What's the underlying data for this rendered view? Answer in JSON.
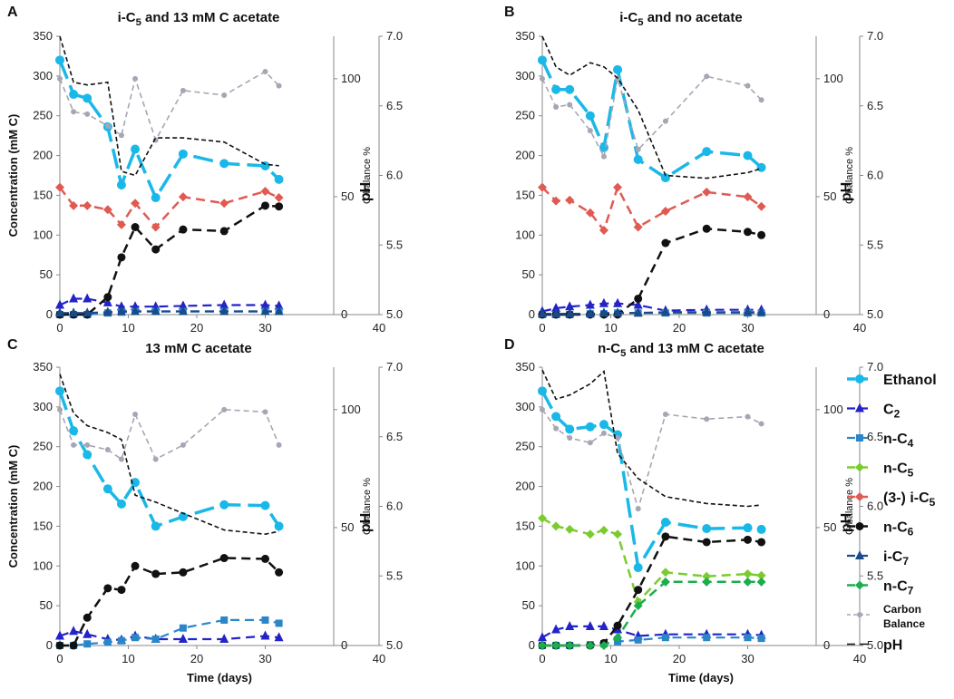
{
  "colors": {
    "Ethanol": "#1ab8e8",
    "C2": "#2323c8",
    "nC4": "#2a86c8",
    "nC5": "#7acc2e",
    "iC5": "#e05a52",
    "nC6": "#111111",
    "iC7": "#1a4a8a",
    "nC7": "#1cad4f",
    "Carbon": "#a6a6b4",
    "pH": "#111111"
  },
  "axes": {
    "x_label": "Time (days)",
    "y_label": "Concentration (mM C)",
    "cbal_label": "C-balance %",
    "ph_label": "pH",
    "x_ticks": [
      "0",
      "10",
      "20",
      "30",
      "40"
    ],
    "y_ticks": [
      "0",
      "50",
      "100",
      "150",
      "200",
      "250",
      "300",
      "350"
    ],
    "cbal_ticks": [
      "0",
      "50",
      "100"
    ],
    "ph_ticks": [
      "5.0",
      "5.5",
      "6.0",
      "6.5",
      "7.0"
    ]
  },
  "legend": [
    {
      "key": "Ethanol",
      "label": "Ethanol"
    },
    {
      "key": "C2",
      "label": "C₂"
    },
    {
      "key": "nC4",
      "label": "n-C₄"
    },
    {
      "key": "nC5",
      "label": "n-C₅"
    },
    {
      "key": "iC5",
      "label": "(3-) i-C₅"
    },
    {
      "key": "nC6",
      "label": "n-C₆"
    },
    {
      "key": "iC7",
      "label": "i-C₇"
    },
    {
      "key": "nC7",
      "label": "n-C₇"
    },
    {
      "key": "Carbon",
      "label": "Carbon Balance"
    },
    {
      "key": "pH",
      "label": "pH"
    }
  ],
  "chart_data": [
    {
      "panel": "A",
      "type": "line",
      "title": "i-C₅ and 13 mM C acetate",
      "xlabel": "Time (days)",
      "ylabel": "Concentration (mM C)",
      "xlim": [
        0,
        40
      ],
      "ylim": [
        0,
        350
      ],
      "cbal_lim": [
        0,
        118
      ],
      "ph_lim": [
        5.0,
        7.0
      ],
      "series": [
        {
          "key": "Ethanol",
          "axis": "conc",
          "x": [
            0,
            2,
            4,
            7,
            9,
            11,
            14,
            18,
            24,
            30,
            32
          ],
          "y": [
            320,
            277,
            272,
            236,
            163,
            208,
            147,
            202,
            190,
            187,
            170
          ]
        },
        {
          "key": "C2",
          "axis": "conc",
          "x": [
            0,
            2,
            4,
            7,
            9,
            11,
            14,
            18,
            24,
            30,
            32
          ],
          "y": [
            12,
            20,
            20,
            15,
            10,
            10,
            10,
            11,
            12,
            12,
            11
          ]
        },
        {
          "key": "nC4",
          "axis": "conc",
          "x": [
            0,
            2,
            4,
            7,
            9,
            11,
            14,
            18,
            24,
            30,
            32
          ],
          "y": [
            0,
            0,
            0,
            2,
            3,
            4,
            4,
            4,
            4,
            4,
            4
          ]
        },
        {
          "key": "iC5",
          "axis": "conc",
          "x": [
            0,
            2,
            4,
            7,
            9,
            11,
            14,
            18,
            24,
            30,
            32
          ],
          "y": [
            160,
            137,
            137,
            132,
            113,
            140,
            110,
            148,
            140,
            155,
            147
          ]
        },
        {
          "key": "nC6",
          "axis": "conc",
          "x": [
            0,
            2,
            4,
            7,
            9,
            11,
            14,
            18,
            24,
            30,
            32
          ],
          "y": [
            0,
            0,
            0,
            22,
            72,
            110,
            82,
            107,
            105,
            137,
            136
          ]
        },
        {
          "key": "iC7",
          "axis": "conc",
          "x": [
            0,
            2,
            4,
            7,
            9,
            11,
            14,
            18,
            24,
            30,
            32
          ],
          "y": [
            2,
            2,
            2,
            3,
            4,
            4,
            4,
            4,
            4,
            4,
            4
          ]
        },
        {
          "key": "Carbon",
          "axis": "cbal",
          "x": [
            0,
            2,
            4,
            7,
            9,
            11,
            14,
            18,
            24,
            30,
            32
          ],
          "y": [
            100,
            86,
            85,
            80,
            76,
            100,
            74,
            95,
            93,
            103,
            97
          ]
        },
        {
          "key": "pH",
          "axis": "ph",
          "x": [
            0,
            2,
            4,
            7,
            9,
            11,
            14,
            18,
            24,
            30,
            32
          ],
          "y": [
            7.0,
            6.67,
            6.65,
            6.67,
            6.03,
            6.0,
            6.27,
            6.27,
            6.24,
            6.08,
            6.07
          ]
        }
      ]
    },
    {
      "panel": "B",
      "type": "line",
      "title": "i-C₅ and no acetate",
      "xlabel": "Time (days)",
      "ylabel": "Concentration (mM C)",
      "xlim": [
        0,
        40
      ],
      "ylim": [
        0,
        350
      ],
      "cbal_lim": [
        0,
        118
      ],
      "ph_lim": [
        5.0,
        7.0
      ],
      "series": [
        {
          "key": "Ethanol",
          "axis": "conc",
          "x": [
            0,
            2,
            4,
            7,
            9,
            11,
            14,
            18,
            24,
            30,
            32
          ],
          "y": [
            320,
            283,
            283,
            250,
            210,
            308,
            195,
            172,
            205,
            200,
            185
          ]
        },
        {
          "key": "C2",
          "axis": "conc",
          "x": [
            0,
            2,
            4,
            7,
            9,
            11,
            14,
            18,
            24,
            30,
            32
          ],
          "y": [
            4,
            8,
            10,
            12,
            14,
            14,
            12,
            5,
            6,
            6,
            6
          ]
        },
        {
          "key": "nC4",
          "axis": "conc",
          "x": [
            0,
            2,
            4,
            7,
            9,
            11,
            14,
            18,
            24,
            30,
            32
          ],
          "y": [
            0,
            0,
            0,
            1,
            1,
            2,
            2,
            2,
            2,
            2,
            2
          ]
        },
        {
          "key": "iC5",
          "axis": "conc",
          "x": [
            0,
            2,
            4,
            7,
            9,
            11,
            14,
            18,
            24,
            30,
            32
          ],
          "y": [
            160,
            143,
            144,
            128,
            106,
            160,
            110,
            130,
            154,
            148,
            136
          ]
        },
        {
          "key": "nC6",
          "axis": "conc",
          "x": [
            0,
            2,
            4,
            7,
            9,
            11,
            14,
            18,
            24,
            30,
            32
          ],
          "y": [
            0,
            0,
            0,
            0,
            0,
            0,
            20,
            90,
            108,
            104,
            100
          ]
        },
        {
          "key": "iC7",
          "axis": "conc",
          "x": [
            0,
            2,
            4,
            7,
            9,
            11,
            14,
            18,
            24,
            30,
            32
          ],
          "y": [
            1,
            1,
            1,
            1,
            2,
            2,
            2,
            3,
            3,
            3,
            3
          ]
        },
        {
          "key": "Carbon",
          "axis": "cbal",
          "x": [
            0,
            2,
            4,
            7,
            9,
            11,
            14,
            18,
            24,
            30,
            32
          ],
          "y": [
            100,
            88,
            89,
            78,
            67,
            100,
            70,
            82,
            101,
            97,
            91
          ]
        },
        {
          "key": "pH",
          "axis": "ph",
          "x": [
            0,
            2,
            4,
            7,
            9,
            11,
            14,
            18,
            24,
            30,
            32
          ],
          "y": [
            7.0,
            6.78,
            6.72,
            6.81,
            6.78,
            6.7,
            6.47,
            6.0,
            5.98,
            6.02,
            6.05
          ]
        }
      ]
    },
    {
      "panel": "C",
      "type": "line",
      "title": "13 mM C acetate",
      "xlabel": "Time (days)",
      "ylabel": "Concentration (mM C)",
      "xlim": [
        0,
        40
      ],
      "ylim": [
        0,
        350
      ],
      "cbal_lim": [
        0,
        118
      ],
      "ph_lim": [
        5.0,
        7.0
      ],
      "series": [
        {
          "key": "Ethanol",
          "axis": "conc",
          "x": [
            0,
            2,
            4,
            7,
            9,
            11,
            14,
            18,
            24,
            30,
            32
          ],
          "y": [
            320,
            270,
            240,
            197,
            178,
            205,
            150,
            162,
            177,
            176,
            150
          ]
        },
        {
          "key": "C2",
          "axis": "conc",
          "x": [
            0,
            2,
            4,
            7,
            9,
            11,
            14,
            18,
            24,
            30,
            32
          ],
          "y": [
            12,
            18,
            14,
            8,
            7,
            12,
            8,
            8,
            8,
            12,
            10
          ]
        },
        {
          "key": "nC4",
          "axis": "conc",
          "x": [
            0,
            2,
            4,
            7,
            9,
            11,
            14,
            18,
            24,
            30,
            32
          ],
          "y": [
            0,
            0,
            2,
            4,
            6,
            10,
            8,
            22,
            32,
            32,
            28
          ]
        },
        {
          "key": "nC6",
          "axis": "conc",
          "x": [
            0,
            2,
            4,
            7,
            9,
            11,
            14,
            18,
            24,
            30,
            32
          ],
          "y": [
            0,
            0,
            35,
            72,
            70,
            100,
            90,
            92,
            110,
            109,
            92
          ]
        },
        {
          "key": "Carbon",
          "axis": "cbal",
          "x": [
            0,
            2,
            4,
            7,
            9,
            11,
            14,
            18,
            24,
            30,
            32
          ],
          "y": [
            100,
            85,
            85,
            83,
            79,
            98,
            79,
            85,
            100,
            99,
            85
          ]
        },
        {
          "key": "pH",
          "axis": "ph",
          "x": [
            0,
            2,
            4,
            7,
            9,
            11,
            14,
            18,
            24,
            30,
            32
          ],
          "y": [
            6.95,
            6.67,
            6.58,
            6.53,
            6.48,
            6.08,
            6.03,
            5.95,
            5.83,
            5.8,
            5.82
          ]
        }
      ]
    },
    {
      "panel": "D",
      "type": "line",
      "title": "n-C₅ and 13 mM C acetate",
      "xlabel": "Time (days)",
      "ylabel": "Concentration (mM C)",
      "xlim": [
        0,
        40
      ],
      "ylim": [
        0,
        350
      ],
      "cbal_lim": [
        0,
        118
      ],
      "ph_lim": [
        5.0,
        7.0
      ],
      "series": [
        {
          "key": "Ethanol",
          "axis": "conc",
          "x": [
            0,
            2,
            4,
            7,
            9,
            11,
            14,
            18,
            24,
            30,
            32
          ],
          "y": [
            320,
            288,
            272,
            275,
            278,
            265,
            98,
            155,
            147,
            148,
            146
          ]
        },
        {
          "key": "C2",
          "axis": "conc",
          "x": [
            0,
            2,
            4,
            7,
            9,
            11,
            14,
            18,
            24,
            30,
            32
          ],
          "y": [
            10,
            20,
            24,
            24,
            24,
            20,
            12,
            14,
            14,
            14,
            13
          ]
        },
        {
          "key": "nC4",
          "axis": "conc",
          "x": [
            0,
            2,
            4,
            7,
            9,
            11,
            14,
            18,
            24,
            30,
            32
          ],
          "y": [
            0,
            0,
            0,
            1,
            2,
            5,
            7,
            10,
            10,
            10,
            9
          ]
        },
        {
          "key": "nC5",
          "axis": "conc",
          "x": [
            0,
            2,
            4,
            7,
            9,
            11,
            14,
            18,
            24,
            30,
            32
          ],
          "y": [
            160,
            150,
            146,
            140,
            145,
            140,
            55,
            92,
            87,
            90,
            88
          ]
        },
        {
          "key": "nC6",
          "axis": "conc",
          "x": [
            0,
            2,
            4,
            7,
            9,
            11,
            14,
            18,
            24,
            30,
            32
          ],
          "y": [
            0,
            0,
            0,
            0,
            3,
            25,
            70,
            137,
            130,
            133,
            130
          ]
        },
        {
          "key": "nC7",
          "axis": "conc",
          "x": [
            0,
            2,
            4,
            7,
            9,
            11,
            14,
            18,
            24,
            30,
            32
          ],
          "y": [
            0,
            0,
            0,
            0,
            0,
            10,
            50,
            80,
            80,
            80,
            80
          ]
        },
        {
          "key": "Carbon",
          "axis": "cbal",
          "x": [
            0,
            2,
            4,
            7,
            9,
            11,
            14,
            18,
            24,
            30,
            32
          ],
          "y": [
            100,
            92,
            88,
            86,
            90,
            88,
            58,
            98,
            96,
            97,
            94
          ]
        },
        {
          "key": "pH",
          "axis": "ph",
          "x": [
            0,
            2,
            4,
            7,
            9,
            11,
            14,
            18,
            24,
            30,
            32
          ],
          "y": [
            6.98,
            6.77,
            6.8,
            6.88,
            6.97,
            6.38,
            6.2,
            6.07,
            6.02,
            6.0,
            6.01
          ]
        }
      ]
    }
  ]
}
